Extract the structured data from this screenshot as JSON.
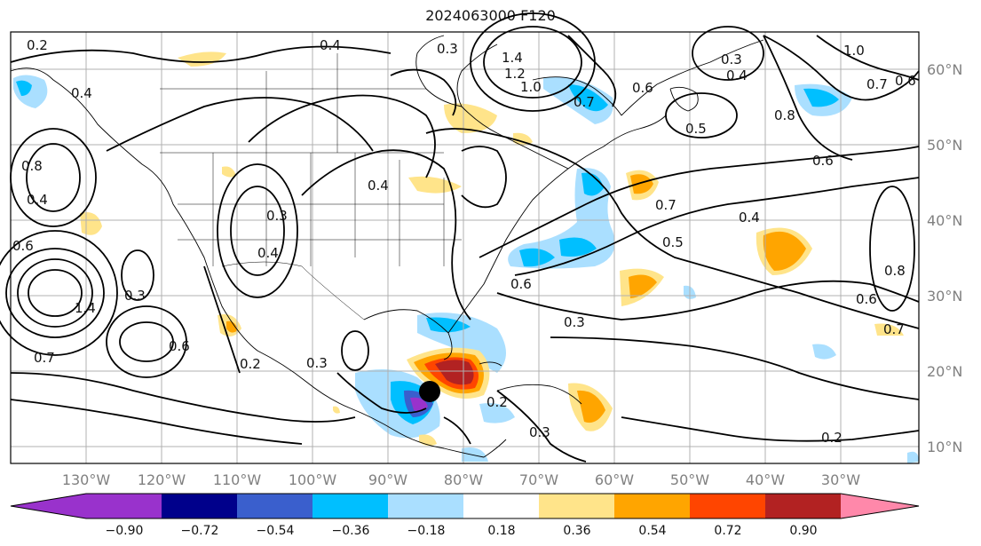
{
  "title": "2024063000 F120",
  "lon_labels": [
    "130°W",
    "120°W",
    "110°W",
    "100°W",
    "90°W",
    "80°W",
    "70°W",
    "60°W",
    "50°W",
    "40°W",
    "30°W"
  ],
  "lat_labels": [
    "60°N",
    "50°N",
    "40°N",
    "30°N",
    "20°N",
    "10°N"
  ],
  "colorbar": {
    "ticks": [
      "−0.90",
      "−0.72",
      "−0.54",
      "−0.36",
      "−0.18",
      "0.18",
      "0.36",
      "0.54",
      "0.72",
      "0.90"
    ],
    "colors": [
      "#9932cc",
      "#00008b",
      "#3a5fcd",
      "#00bfff",
      "#aadfff",
      "#ffffff",
      "#ffe48a",
      "#ffa500",
      "#ff4500",
      "#b22222",
      "#ff88aa"
    ]
  },
  "contour_labels": [
    "0.2",
    "0.4",
    "0.8",
    "0.4",
    "0.6",
    "1.4",
    "0.7",
    "0.3",
    "0.6",
    "0.3",
    "0.4",
    "1.4",
    "1.2",
    "1.0",
    "0.7",
    "0.6",
    "0.5",
    "0.3",
    "0.4",
    "1.0",
    "0.7",
    "0.6",
    "0.8",
    "0.6",
    "0.7",
    "0.4",
    "0.5",
    "0.6",
    "0.3",
    "0.3",
    "0.2",
    "0.8",
    "0.6",
    "0.7",
    "0.2",
    "0.3",
    "0.4",
    "0.3",
    "0.2",
    "0.4"
  ],
  "storm_marker": "black-dot"
}
